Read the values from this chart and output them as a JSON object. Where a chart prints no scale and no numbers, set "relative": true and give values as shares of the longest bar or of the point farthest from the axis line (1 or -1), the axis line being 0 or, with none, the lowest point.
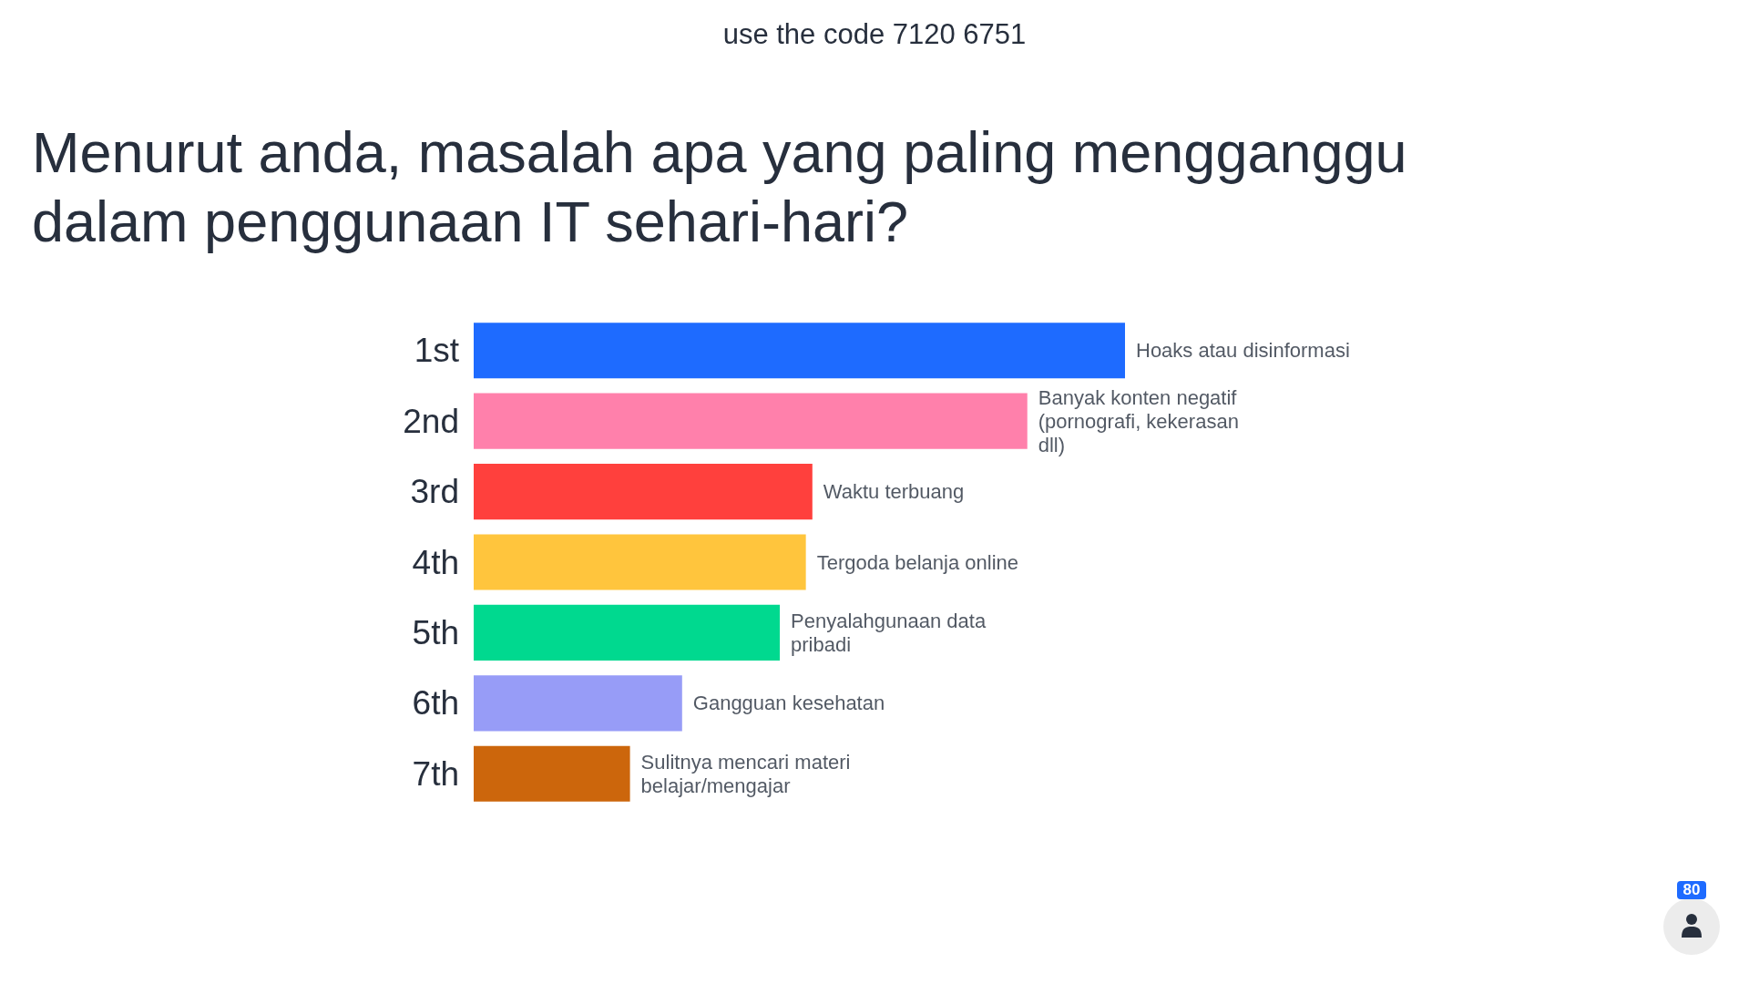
{
  "chart_data": {
    "type": "bar",
    "orientation": "horizontal",
    "relative": true,
    "title": "Menurut anda, masalah apa yang paling mengganggu dalam penggunaan IT sehari-hari?",
    "categories": [
      "1st",
      "2nd",
      "3rd",
      "4th",
      "5th",
      "6th",
      "7th"
    ],
    "values": [
      1,
      0.85,
      0.52,
      0.51,
      0.47,
      0.32,
      0.24
    ],
    "colors": [
      "#1e6bff",
      "#ff80ab",
      "#ff403d",
      "#ffc53d",
      "#00d98f",
      "#979cf7",
      "#cc660c"
    ],
    "annotations": [
      "use the code 7120 6751",
      "80",
      {
        "text": "Hoaks atau disinformasi",
        "x": 1,
        "y": "1st"
      },
      {
        "text": "Banyak konten negatif (pornografi, kekerasan dll)",
        "x": 0.85,
        "y": "2nd"
      },
      {
        "text": "Waktu terbuang",
        "x": 0.52,
        "y": "3rd"
      },
      {
        "text": "Tergoda belanja online",
        "x": 0.51,
        "y": "4th"
      },
      {
        "text": "Penyalahgunaan data pribadi",
        "x": 0.47,
        "y": "5th"
      },
      {
        "text": "Gangguan kesehatan",
        "x": 0.32,
        "y": "6th"
      },
      {
        "text": "Sulitnya mencari materi belajar/mengajar",
        "x": 0.24,
        "y": "7th"
      }
    ]
  }
}
